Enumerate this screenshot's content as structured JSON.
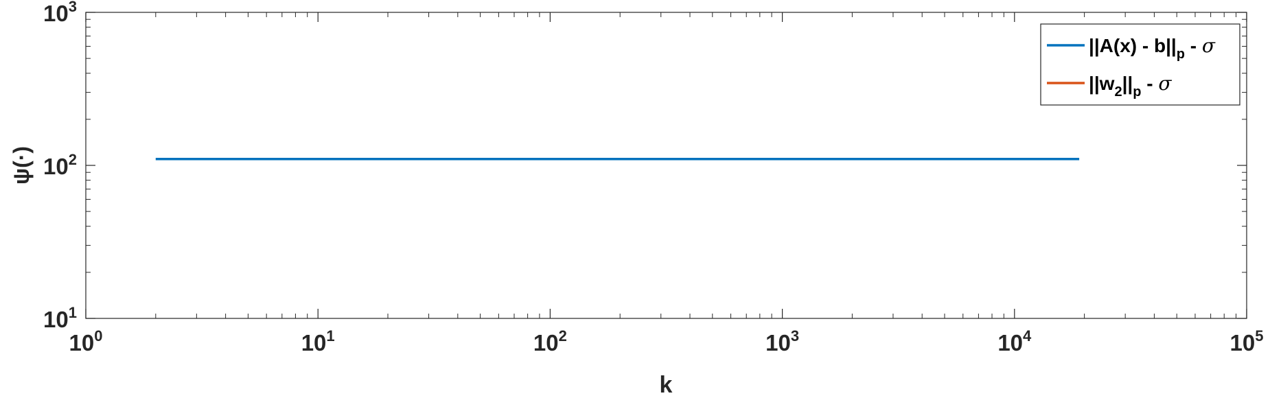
{
  "chart_data": {
    "type": "line",
    "xscale": "log",
    "yscale": "log",
    "xlim": [
      1,
      100000
    ],
    "ylim": [
      10,
      1000
    ],
    "xlabel": "k",
    "ylabel": "ψ(·)",
    "x_ticks": [
      {
        "base": "10",
        "exp": "0"
      },
      {
        "base": "10",
        "exp": "1"
      },
      {
        "base": "10",
        "exp": "2"
      },
      {
        "base": "10",
        "exp": "3"
      },
      {
        "base": "10",
        "exp": "4"
      },
      {
        "base": "10",
        "exp": "5"
      }
    ],
    "y_ticks": [
      {
        "base": "10",
        "exp": "1"
      },
      {
        "base": "10",
        "exp": "2"
      },
      {
        "base": "10",
        "exp": "3"
      }
    ],
    "grid": false,
    "legend_position": "top-right",
    "series": [
      {
        "name": "||A(x) - b||p - σ",
        "legend": {
          "pre": "||A(x) - b||",
          "sub": "p",
          "post": " - ",
          "sym": "σ"
        },
        "color": "#0072BD",
        "x": [
          2,
          19000
        ],
        "y": [
          110,
          110
        ]
      },
      {
        "name": "||w2||p - σ",
        "legend": {
          "pre": "||w",
          "sub1": "2",
          "mid": "||",
          "sub": "p",
          "post": " - ",
          "sym": "σ"
        },
        "color": "#D95319",
        "x": [],
        "y": []
      }
    ]
  }
}
